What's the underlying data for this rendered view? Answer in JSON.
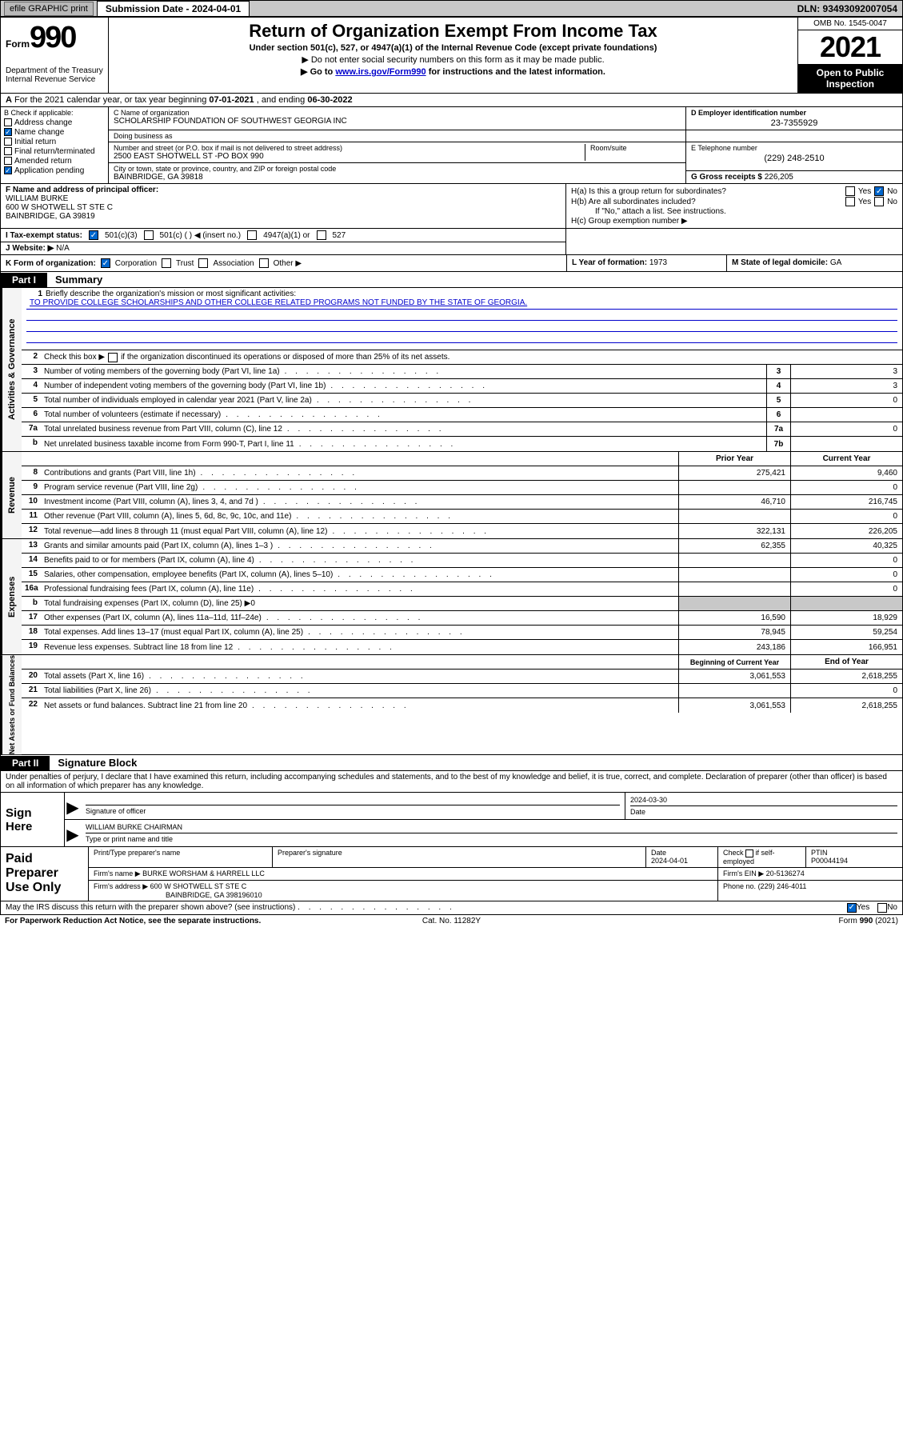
{
  "topbar": {
    "efile": "efile GRAPHIC print",
    "submission": "Submission Date - 2024-04-01",
    "dln": "DLN: 93493092007054"
  },
  "header": {
    "form_word": "Form",
    "form_num": "990",
    "dept": "Department of the Treasury\nInternal Revenue Service",
    "title": "Return of Organization Exempt From Income Tax",
    "sub": "Under section 501(c), 527, or 4947(a)(1) of the Internal Revenue Code (except private foundations)",
    "note1": "▶ Do not enter social security numbers on this form as it may be made public.",
    "note2_pre": "▶ Go to ",
    "note2_link": "www.irs.gov/Form990",
    "note2_post": " for instructions and the latest information.",
    "omb": "OMB No. 1545-0047",
    "year": "2021",
    "inspection": "Open to Public Inspection"
  },
  "row_a": {
    "label_a": "A",
    "text": "For the 2021 calendar year, or tax year beginning ",
    "begin": "07-01-2021",
    "mid": " , and ending ",
    "end": "06-30-2022"
  },
  "check_b": {
    "label": "B Check if applicable:",
    "items": [
      {
        "label": "Address change",
        "checked": false
      },
      {
        "label": "Name change",
        "checked": true
      },
      {
        "label": "Initial return",
        "checked": false
      },
      {
        "label": "Final return/terminated",
        "checked": false
      },
      {
        "label": "Amended return",
        "checked": false
      },
      {
        "label": "Application pending",
        "checked": true
      }
    ]
  },
  "org": {
    "name_label": "C Name of organization",
    "name": "SCHOLARSHIP FOUNDATION OF SOUTHWEST GEORGIA INC",
    "dba_label": "Doing business as",
    "dba": "",
    "street_label": "Number and street (or P.O. box if mail is not delivered to street address)",
    "street": "2500 EAST SHOTWELL ST -PO BOX 990",
    "suite_label": "Room/suite",
    "suite": "",
    "city_label": "City or town, state or province, country, and ZIP or foreign postal code",
    "city": "BAINBRIDGE, GA  39818",
    "ein_label": "D Employer identification number",
    "ein": "23-7355929",
    "phone_label": "E Telephone number",
    "phone": "(229) 248-2510",
    "gross_label": "G Gross receipts $",
    "gross": "226,205"
  },
  "officer": {
    "label": "F  Name and address of principal officer:",
    "name": "WILLIAM BURKE",
    "addr1": "600 W SHOTWELL ST STE C",
    "addr2": "BAINBRIDGE, GA  39819"
  },
  "h": {
    "a_label": "H(a)  Is this a group return for subordinates?",
    "a_yes": "Yes",
    "a_no": "No",
    "b_label": "H(b)  Are all subordinates included?",
    "b_yes": "Yes",
    "b_no": "No",
    "b_note": "If \"No,\" attach a list. See instructions.",
    "c_label": "H(c)  Group exemption number ▶"
  },
  "i": {
    "label": "I   Tax-exempt status:",
    "opt1": "501(c)(3)",
    "opt2": "501(c) (  ) ◀ (insert no.)",
    "opt3": "4947(a)(1) or",
    "opt4": "527"
  },
  "j": {
    "label": "J   Website: ▶",
    "val": "N/A"
  },
  "k": {
    "label": "K Form of organization:",
    "opts": [
      "Corporation",
      "Trust",
      "Association",
      "Other ▶"
    ],
    "checked": 0
  },
  "l": {
    "label": "L Year of formation:",
    "val": "1973"
  },
  "m": {
    "label": "M State of legal domicile:",
    "val": "GA"
  },
  "part1": {
    "label": "Part I",
    "title": "Summary"
  },
  "mission": {
    "num": "1",
    "label": "Briefly describe the organization's mission or most significant activities:",
    "text": "TO PROVIDE COLLEGE SCHOLARSHIPS AND OTHER COLLEGE RELATED PROGRAMS NOT FUNDED BY THE STATE OF GEORGIA."
  },
  "line2": {
    "num": "2",
    "text_pre": "Check this box ▶",
    "text_post": " if the organization discontinued its operations or disposed of more than 25% of its net assets."
  },
  "gov_lines": [
    {
      "num": "3",
      "desc": "Number of voting members of the governing body (Part VI, line 1a)",
      "box": "3",
      "val": "3"
    },
    {
      "num": "4",
      "desc": "Number of independent voting members of the governing body (Part VI, line 1b)",
      "box": "4",
      "val": "3"
    },
    {
      "num": "5",
      "desc": "Total number of individuals employed in calendar year 2021 (Part V, line 2a)",
      "box": "5",
      "val": "0"
    },
    {
      "num": "6",
      "desc": "Total number of volunteers (estimate if necessary)",
      "box": "6",
      "val": ""
    },
    {
      "num": "7a",
      "desc": "Total unrelated business revenue from Part VIII, column (C), line 12",
      "box": "7a",
      "val": "0"
    },
    {
      "num": "b",
      "desc": "Net unrelated business taxable income from Form 990-T, Part I, line 11",
      "box": "7b",
      "val": ""
    }
  ],
  "col_headers": {
    "prior": "Prior Year",
    "current": "Current Year"
  },
  "rev_lines": [
    {
      "num": "8",
      "desc": "Contributions and grants (Part VIII, line 1h)",
      "prior": "275,421",
      "current": "9,460"
    },
    {
      "num": "9",
      "desc": "Program service revenue (Part VIII, line 2g)",
      "prior": "",
      "current": "0"
    },
    {
      "num": "10",
      "desc": "Investment income (Part VIII, column (A), lines 3, 4, and 7d )",
      "prior": "46,710",
      "current": "216,745"
    },
    {
      "num": "11",
      "desc": "Other revenue (Part VIII, column (A), lines 5, 6d, 8c, 9c, 10c, and 11e)",
      "prior": "",
      "current": "0"
    },
    {
      "num": "12",
      "desc": "Total revenue—add lines 8 through 11 (must equal Part VIII, column (A), line 12)",
      "prior": "322,131",
      "current": "226,205"
    }
  ],
  "exp_lines": [
    {
      "num": "13",
      "desc": "Grants and similar amounts paid (Part IX, column (A), lines 1–3 )",
      "prior": "62,355",
      "current": "40,325"
    },
    {
      "num": "14",
      "desc": "Benefits paid to or for members (Part IX, column (A), line 4)",
      "prior": "",
      "current": "0"
    },
    {
      "num": "15",
      "desc": "Salaries, other compensation, employee benefits (Part IX, column (A), lines 5–10)",
      "prior": "",
      "current": "0"
    },
    {
      "num": "16a",
      "desc": "Professional fundraising fees (Part IX, column (A), line 11e)",
      "prior": "",
      "current": "0"
    },
    {
      "num": "b",
      "desc": "Total fundraising expenses (Part IX, column (D), line 25) ▶0",
      "prior": "shaded",
      "current": "shaded"
    },
    {
      "num": "17",
      "desc": "Other expenses (Part IX, column (A), lines 11a–11d, 11f–24e)",
      "prior": "16,590",
      "current": "18,929"
    },
    {
      "num": "18",
      "desc": "Total expenses. Add lines 13–17 (must equal Part IX, column (A), line 25)",
      "prior": "78,945",
      "current": "59,254"
    },
    {
      "num": "19",
      "desc": "Revenue less expenses. Subtract line 18 from line 12",
      "prior": "243,186",
      "current": "166,951"
    }
  ],
  "net_headers": {
    "begin": "Beginning of Current Year",
    "end": "End of Year"
  },
  "net_lines": [
    {
      "num": "20",
      "desc": "Total assets (Part X, line 16)",
      "prior": "3,061,553",
      "current": "2,618,255"
    },
    {
      "num": "21",
      "desc": "Total liabilities (Part X, line 26)",
      "prior": "",
      "current": "0"
    },
    {
      "num": "22",
      "desc": "Net assets or fund balances. Subtract line 21 from line 20",
      "prior": "3,061,553",
      "current": "2,618,255"
    }
  ],
  "vtabs": {
    "gov": "Activities & Governance",
    "rev": "Revenue",
    "exp": "Expenses",
    "net": "Net Assets or Fund Balances"
  },
  "part2": {
    "label": "Part II",
    "title": "Signature Block"
  },
  "sig_intro": "Under penalties of perjury, I declare that I have examined this return, including accompanying schedules and statements, and to the best of my knowledge and belief, it is true, correct, and complete. Declaration of preparer (other than officer) is based on all information of which preparer has any knowledge.",
  "sign_here": {
    "label": "Sign Here",
    "sig_label": "Signature of officer",
    "date_label": "Date",
    "date": "2024-03-30",
    "name": "WILLIAM BURKE  CHAIRMAN",
    "name_label": "Type or print name and title"
  },
  "preparer": {
    "label": "Paid Preparer Use Only",
    "h1": "Print/Type preparer's name",
    "h2": "Preparer's signature",
    "h3": "Date",
    "date": "2024-04-01",
    "h4_pre": "Check",
    "h4_post": "if self-employed",
    "h5": "PTIN",
    "ptin": "P00044194",
    "firm_label": "Firm's name    ▶",
    "firm_name": "BURKE WORSHAM & HARRELL LLC",
    "ein_label": "Firm's EIN ▶",
    "ein": "20-5136274",
    "addr_label": "Firm's address ▶",
    "addr1": "600 W SHOTWELL ST STE C",
    "addr2": "BAINBRIDGE, GA  398196010",
    "phone_label": "Phone no.",
    "phone": "(229) 246-4011"
  },
  "discuss": {
    "text": "May the IRS discuss this return with the preparer shown above? (see instructions)",
    "yes": "Yes",
    "no": "No"
  },
  "footer": {
    "left": "For Paperwork Reduction Act Notice, see the separate instructions.",
    "mid": "Cat. No. 11282Y",
    "right_pre": "Form ",
    "right_b": "990",
    "right_post": " (2021)"
  },
  "dots": ". . . . . . . . . . . . . . ."
}
